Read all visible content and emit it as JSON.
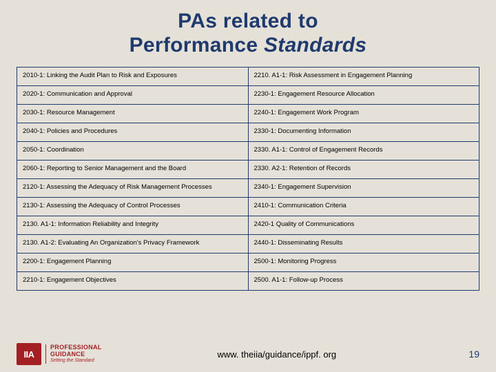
{
  "title": {
    "line1": "PAs related to",
    "line2_a": "Performance ",
    "line2_b": "Standards"
  },
  "table": {
    "left": [
      "2010-1: Linking the Audit Plan to Risk and Exposures",
      "2020-1: Communication and Approval",
      "2030-1: Resource Management",
      "2040-1: Policies and Procedures",
      "2050-1: Coordination",
      "2060-1: Reporting to Senior Management and the Board",
      "2120-1: Assessing the Adequacy of Risk Management Processes",
      "2130-1: Assessing the Adequacy of Control Processes",
      "2130. A1-1: Information Reliability and Integrity",
      "2130. A1-2: Evaluating An Organization's Privacy Framework",
      "2200-1: Engagement Planning",
      "2210-1: Engagement Objectives"
    ],
    "right": [
      "2210. A1-1: Risk Assessment in Engagement Planning",
      "2230-1: Engagement Resource Allocation",
      "2240-1: Engagement Work Program",
      "2330-1: Documenting Information",
      "2330. A1-1: Control of Engagement Records",
      "2330. A2-1: Retention of Records",
      "2340-1: Engagement Supervision",
      "2410-1: Communication Criteria",
      "2420-1 Quality of Communications",
      "2440-1: Disseminating Results",
      "2500-1: Monitoring Progress",
      "2500. A1-1: Follow-up Process"
    ]
  },
  "footer": {
    "logo_mark": "IIA",
    "logo_pro": "PROFESSIONAL",
    "logo_guid": "GUIDANCE",
    "logo_tag": "Setting the Standard",
    "url": "www. theiia/guidance/ippf. org",
    "page": "19"
  },
  "colors": {
    "background": "#e5e1d8",
    "title_color": "#1f3a6e",
    "border_color": "#1f3a6e",
    "logo_red": "#a31f23"
  }
}
